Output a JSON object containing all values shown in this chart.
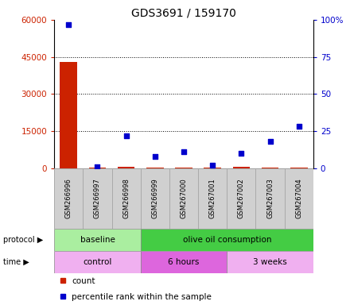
{
  "title": "GDS3691 / 159170",
  "samples": [
    "GSM266996",
    "GSM266997",
    "GSM266998",
    "GSM266999",
    "GSM267000",
    "GSM267001",
    "GSM267002",
    "GSM267003",
    "GSM267004"
  ],
  "count_values": [
    43000,
    200,
    500,
    200,
    300,
    200,
    400,
    300,
    300
  ],
  "percentile_values": [
    97,
    1,
    22,
    8,
    11,
    2,
    10,
    18,
    28
  ],
  "ylim_left": [
    0,
    60000
  ],
  "ylim_right": [
    0,
    100
  ],
  "yticks_left": [
    0,
    15000,
    30000,
    45000,
    60000
  ],
  "yticks_right": [
    0,
    25,
    50,
    75,
    100
  ],
  "yticklabels_left": [
    "0",
    "15000",
    "30000",
    "45000",
    "60000"
  ],
  "yticklabels_right": [
    "0",
    "25",
    "50",
    "75",
    "100%"
  ],
  "protocol_labels": [
    {
      "label": "baseline",
      "start": 0,
      "end": 3,
      "color": "#aaeea0"
    },
    {
      "label": "olive oil consumption",
      "start": 3,
      "end": 9,
      "color": "#44cc44"
    }
  ],
  "time_labels": [
    {
      "label": "control",
      "start": 0,
      "end": 3,
      "color": "#f0b0f0"
    },
    {
      "label": "6 hours",
      "start": 3,
      "end": 6,
      "color": "#dd66dd"
    },
    {
      "label": "3 weeks",
      "start": 6,
      "end": 9,
      "color": "#f0b0f0"
    }
  ],
  "count_color": "#cc2200",
  "percentile_color": "#0000cc",
  "bg_color": "#ffffff",
  "grid_color": "#000000",
  "bar_width": 0.6,
  "sample_box_color": "#d0d0d0",
  "sample_box_edge_color": "#aaaaaa"
}
